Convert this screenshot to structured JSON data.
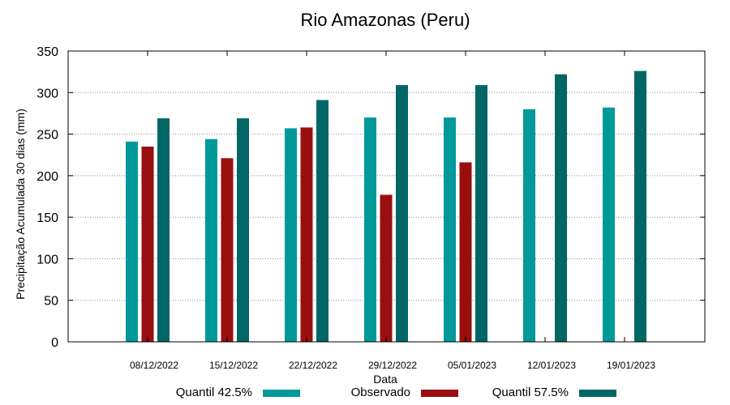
{
  "chart_data": {
    "type": "bar",
    "title": "Rio Amazonas (Peru)",
    "xlabel": "Data",
    "ylabel": "Precipitação Acumulada 30 dias (mm)",
    "ylim": [
      0,
      350
    ],
    "yticks": [
      0,
      50,
      100,
      150,
      200,
      250,
      300,
      350
    ],
    "grid": true,
    "legend_position": "bottom",
    "categories": [
      "08/12/2022",
      "15/12/2022",
      "22/12/2022",
      "29/12/2022",
      "05/01/2023",
      "12/01/2023",
      "19/01/2023"
    ],
    "series": [
      {
        "name": "Quantil 42.5%",
        "color": "#009999",
        "values": [
          241,
          244,
          257,
          270,
          270,
          280,
          282
        ]
      },
      {
        "name": "Observado",
        "color": "#990f0f",
        "values": [
          235,
          221,
          258,
          177,
          216,
          null,
          null
        ]
      },
      {
        "name": "Quantil 57.5%",
        "color": "#006666",
        "values": [
          269,
          269,
          291,
          309,
          309,
          322,
          326
        ]
      }
    ]
  }
}
